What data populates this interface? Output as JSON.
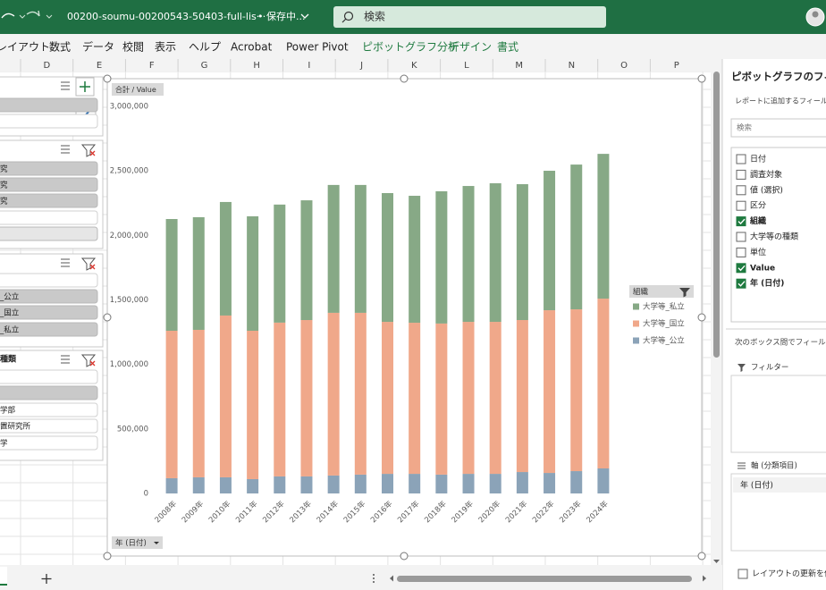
{
  "titlebar": {
    "filename": "00200-soumu-00200543-50403-full-lis···",
    "status": "• 保存中...",
    "search": "検索"
  },
  "ribbon": {
    "tabs": [
      "レイアウト",
      "数式",
      "データ",
      "校閲",
      "表示",
      "ヘルプ",
      "Acrobat",
      "Power Pivot"
    ],
    "contextual_tabs": [
      "ピボットグラフ分析",
      "デザイン",
      "書式"
    ]
  },
  "columns": [
    "D",
    "E",
    "F",
    "G",
    "H",
    "I",
    "J",
    "K",
    "L",
    "M",
    "N",
    "O",
    "P"
  ],
  "slicers": [
    {
      "items": [
        "究",
        "究",
        "究"
      ]
    },
    {
      "items": [
        "_公立",
        "_国立",
        "_私立"
      ]
    },
    {
      "header": "種類",
      "items": [
        "学部",
        "置研究所",
        "学"
      ]
    }
  ],
  "chart_data": {
    "type": "bar",
    "stacked": true,
    "value_button": "合計 / Value",
    "axis_button": "年 (日付)",
    "legend_title": "組織",
    "legend": "right",
    "grid": false,
    "categories": [
      "2008年",
      "2009年",
      "2010年",
      "2011年",
      "2012年",
      "2013年",
      "2014年",
      "2015年",
      "2016年",
      "2017年",
      "2018年",
      "2019年",
      "2020年",
      "2021年",
      "2022年",
      "2023年",
      "2024年"
    ],
    "series": [
      {
        "name": "大学等_公立",
        "color": "#8ba3b8",
        "values": [
          118000,
          125000,
          125000,
          111000,
          132000,
          132000,
          139000,
          146000,
          152000,
          152000,
          146000,
          152000,
          152000,
          166000,
          159000,
          173000,
          194000
        ]
      },
      {
        "name": "大学等_国立",
        "color": "#f0a88a",
        "values": [
          1143000,
          1143000,
          1254000,
          1150000,
          1192000,
          1212000,
          1261000,
          1254000,
          1178000,
          1171000,
          1171000,
          1178000,
          1178000,
          1178000,
          1261000,
          1254000,
          1316000
        ]
      },
      {
        "name": "大学等_私立",
        "color": "#87a986",
        "values": [
          866000,
          873000,
          880000,
          887000,
          915000,
          928000,
          991000,
          991000,
          998000,
          984000,
          1025000,
          1053000,
          1074000,
          1053000,
          1081000,
          1122000,
          1122000
        ]
      }
    ],
    "ylim": [
      0,
      3000000
    ],
    "yticks": [
      0,
      {
        "value": 500000,
        "label": "500,000"
      },
      {
        "value": 1000000,
        "label": "1,000,000"
      },
      {
        "value": 1500000,
        "label": "1,500,000"
      },
      {
        "value": 2000000,
        "label": "2,000,000"
      },
      {
        "value": 2500000,
        "label": "2,500,000"
      },
      {
        "value": 3000000,
        "label": "3,000,000"
      }
    ]
  },
  "field_list": {
    "title": "ピボットグラフのフィー",
    "subtitle": "レポートに追加するフィールド",
    "search": "検索",
    "fields": [
      {
        "name": "日付",
        "checked": false
      },
      {
        "name": "調査対象",
        "checked": false
      },
      {
        "name": "値 (選択)",
        "checked": false
      },
      {
        "name": "区分",
        "checked": false
      },
      {
        "name": "組織",
        "checked": true
      },
      {
        "name": "大学等の種類",
        "checked": false
      },
      {
        "name": "単位",
        "checked": false
      },
      {
        "name": "Value",
        "checked": true
      },
      {
        "name": "年 (日付)",
        "checked": true
      }
    ],
    "areas_hint": "次のボックス間でフィールド",
    "filter_label": "フィルター",
    "axis_label": "軸 (分類項目)",
    "axis_items": [
      "年 (日付)"
    ],
    "defer_label": "レイアウトの更新を保"
  }
}
